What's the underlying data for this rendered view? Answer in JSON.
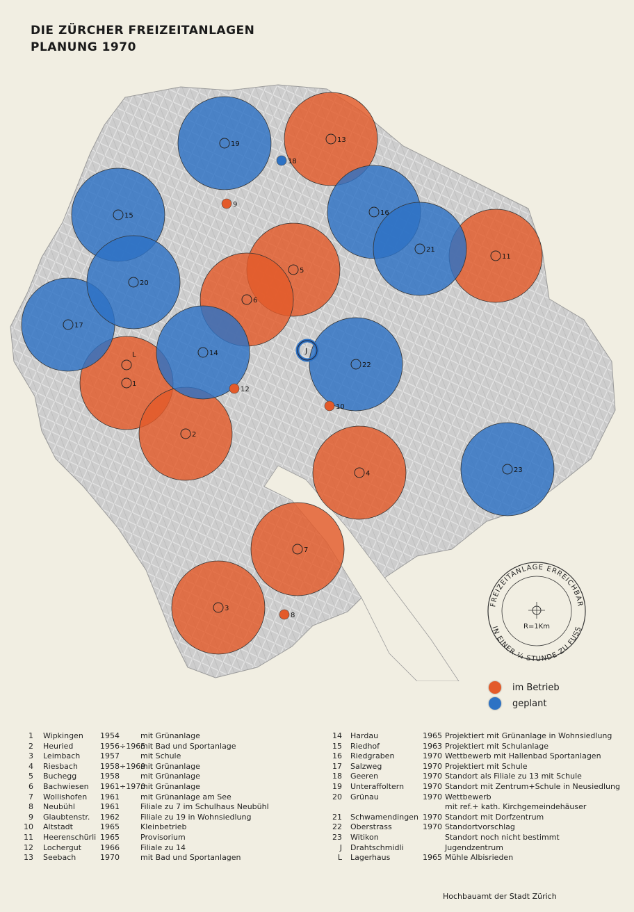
{
  "title": {
    "line1": "DIE ZÜRCHER FREIZEITANLAGEN",
    "line2": "PLANUNG 1970"
  },
  "colors": {
    "in_operation": "#e35a2a",
    "planned": "#2d72c4",
    "background": "#f1eee2",
    "city_map": "#c9c9c9"
  },
  "scale_stamp": {
    "outer_text": "FREIZEITANLAGE ERREICHBAR",
    "lower_text": "IN EINER ¼ STUNDE ZU FUSS",
    "radius_label": "R=1Km"
  },
  "legend": {
    "in_operation": "im Betrieb",
    "planned": "geplant"
  },
  "map_markers": [
    {
      "label": "1",
      "status": "in_operation",
      "circle": true
    },
    {
      "label": "2",
      "status": "in_operation",
      "circle": true
    },
    {
      "label": "3",
      "status": "in_operation",
      "circle": true
    },
    {
      "label": "4",
      "status": "in_operation",
      "circle": true
    },
    {
      "label": "5",
      "status": "in_operation",
      "circle": true
    },
    {
      "label": "6",
      "status": "in_operation",
      "circle": true
    },
    {
      "label": "7",
      "status": "in_operation",
      "circle": true
    },
    {
      "label": "8",
      "status": "in_operation",
      "circle": false
    },
    {
      "label": "9",
      "status": "in_operation",
      "circle": false
    },
    {
      "label": "10",
      "status": "in_operation",
      "circle": false
    },
    {
      "label": "11",
      "status": "in_operation",
      "circle": true
    },
    {
      "label": "12",
      "status": "in_operation",
      "circle": false
    },
    {
      "label": "13",
      "status": "in_operation",
      "circle": true
    },
    {
      "label": "14",
      "status": "planned",
      "circle": true
    },
    {
      "label": "15",
      "status": "planned",
      "circle": true
    },
    {
      "label": "16",
      "status": "planned",
      "circle": true
    },
    {
      "label": "17",
      "status": "planned",
      "circle": true
    },
    {
      "label": "18",
      "status": "planned",
      "circle": false
    },
    {
      "label": "19",
      "status": "planned",
      "circle": true
    },
    {
      "label": "20",
      "status": "planned",
      "circle": true
    },
    {
      "label": "21",
      "status": "planned",
      "circle": true
    },
    {
      "label": "22",
      "status": "planned",
      "circle": true
    },
    {
      "label": "23",
      "status": "planned",
      "circle": true
    },
    {
      "label": "J",
      "status": "planned",
      "circle": false
    },
    {
      "label": "L",
      "status": "in_operation",
      "circle": false
    }
  ],
  "list_left": [
    {
      "num": "1",
      "name": "Wipkingen",
      "year": "1954",
      "note": "mit Grünanlage"
    },
    {
      "num": "2",
      "name": "Heuried",
      "year": "1956÷1965",
      "note": "mit Bad und Sportanlage"
    },
    {
      "num": "3",
      "name": "Leimbach",
      "year": "1957",
      "note": "mit Schule"
    },
    {
      "num": "4",
      "name": "Riesbach",
      "year": "1958÷1969",
      "note": "mit Grünanlage"
    },
    {
      "num": "5",
      "name": "Buchegg",
      "year": "1958",
      "note": "mit Grünanlage"
    },
    {
      "num": "6",
      "name": "Bachwiesen",
      "year": "1961÷1970",
      "note": "mit Grünanlage"
    },
    {
      "num": "7",
      "name": "Wollishofen",
      "year": "1961",
      "note": "mit Grünanlage am See"
    },
    {
      "num": "8",
      "name": "Neubühl",
      "year": "1961",
      "note": "Filiale zu 7 im Schulhaus Neubühl"
    },
    {
      "num": "9",
      "name": "Glaubtenstr.",
      "year": "1962",
      "note": "Filiale zu 19 in Wohnsiedlung"
    },
    {
      "num": "10",
      "name": "Altstadt",
      "year": "1965",
      "note": "Kleinbetrieb"
    },
    {
      "num": "11",
      "name": "Heerenschürli",
      "year": "1965",
      "note": "Provisorium"
    },
    {
      "num": "12",
      "name": "Lochergut",
      "year": "1966",
      "note": "Filiale zu 14"
    },
    {
      "num": "13",
      "name": "Seebach",
      "year": "1970",
      "note": "mit Bad und Sportanlagen"
    }
  ],
  "list_right": [
    {
      "num": "14",
      "name": "Hardau",
      "year": "1965",
      "note": "Projektiert mit Grünanlage in Wohnsiedlung"
    },
    {
      "num": "15",
      "name": "Riedhof",
      "year": "1963",
      "note": "Projektiert mit Schulanlage"
    },
    {
      "num": "16",
      "name": "Riedgraben",
      "year": "1970",
      "note": "Wettbewerb mit Hallenbad Sportanlagen"
    },
    {
      "num": "17",
      "name": "Salzweg",
      "year": "1970",
      "note": "Projektiert mit Schule"
    },
    {
      "num": "18",
      "name": "Geeren",
      "year": "1970",
      "note": "Standort als Filiale zu 13 mit Schule"
    },
    {
      "num": "19",
      "name": "Unteraffoltern",
      "year": "1970",
      "note": "Standort mit Zentrum+Schule in Neusiedlung"
    },
    {
      "num": "20",
      "name": "Grünau",
      "year": "1970",
      "note": "Wettbewerb"
    },
    {
      "num": "",
      "name": "",
      "year": "",
      "note": "mit ref.+ kath. Kirchgemeindehäuser"
    },
    {
      "num": "21",
      "name": "Schwamendingen",
      "year": "1970",
      "note": "Standort mit Dorfzentrum"
    },
    {
      "num": "22",
      "name": "Oberstrass",
      "year": "1970",
      "note": "Standortvorschlag"
    },
    {
      "num": "23",
      "name": "Witikon",
      "year": "",
      "note": "Standort noch nicht bestimmt"
    },
    {
      "num": "J",
      "name": "Drahtschmidli",
      "year": "",
      "note": "Jugendzentrum"
    },
    {
      "num": "L",
      "name": "Lagerhaus",
      "year": "1965",
      "note": "Mühle Albisrieden"
    }
  ],
  "credit": "Hochbauamt der Stadt Zürich"
}
